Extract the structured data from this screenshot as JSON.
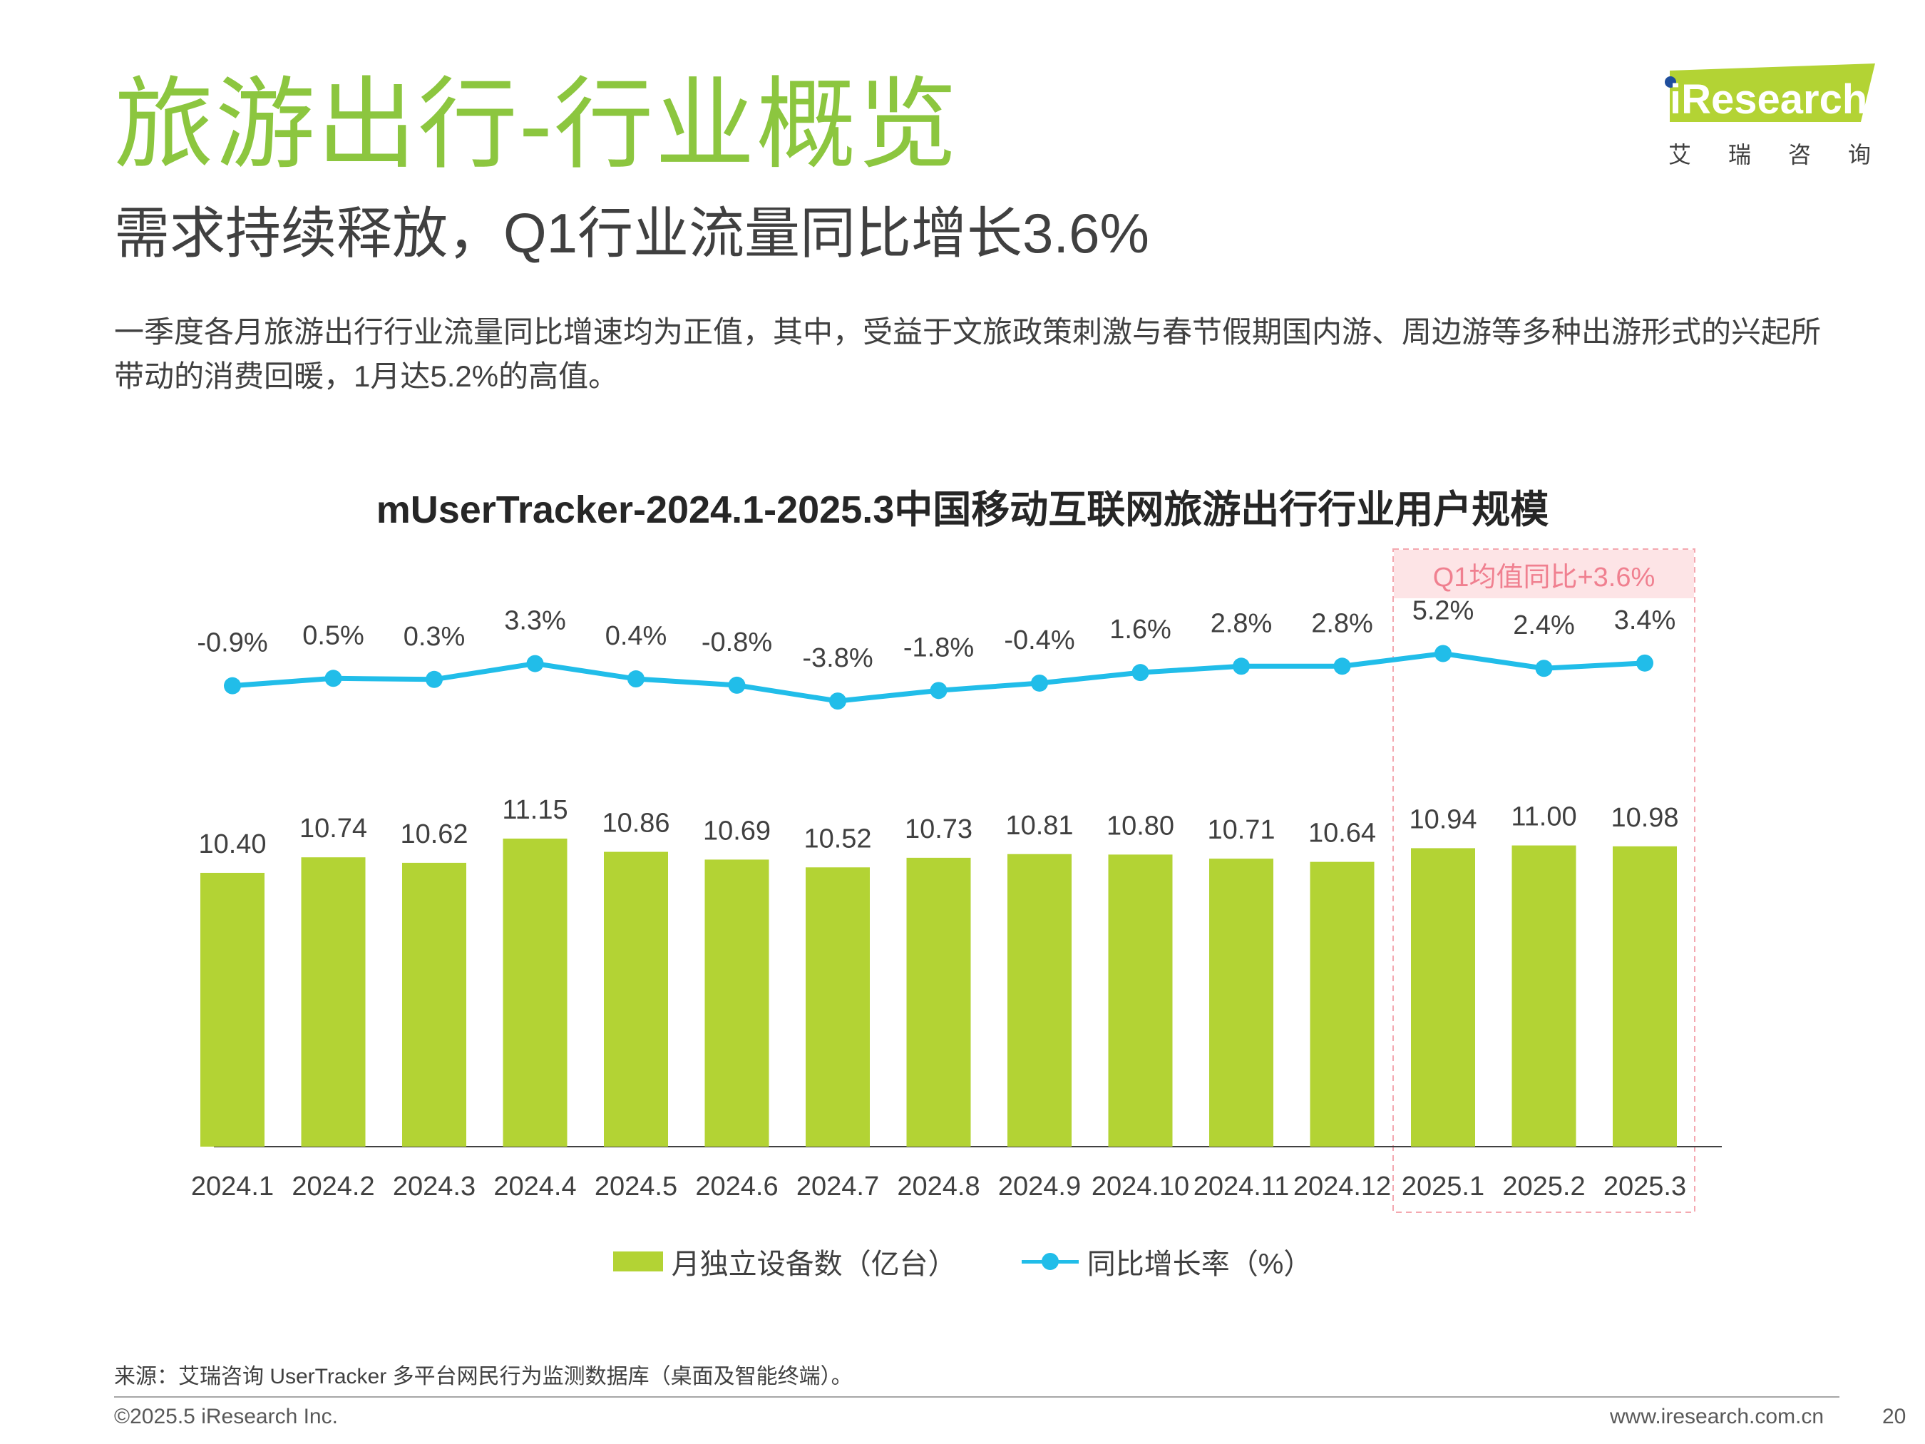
{
  "header": {
    "title": "旅游出行-行业概览",
    "subtitle": "需求持续释放，Q1行业流量同比增长3.6%",
    "description": "一季度各月旅游出行行业流量同比增速均为正值，其中，受益于文旅政策刺激与春节假期国内游、周边游等多种出游形式的兴起所带动的消费回暖，1月达5.2%的高值。"
  },
  "logo": {
    "word": "iResearch",
    "sub": "艾瑞咨询"
  },
  "colors": {
    "title_green": "#8cc63f",
    "bar": "#b3d334",
    "line": "#21bde9",
    "highlight": "#f4a8b0",
    "highlight_text": "#f08090"
  },
  "chart_data": {
    "type": "bar",
    "title": "mUserTracker-2024.1-2025.3中国移动互联网旅游出行行业用户规模",
    "categories": [
      "2024.1",
      "2024.2",
      "2024.3",
      "2024.4",
      "2024.5",
      "2024.6",
      "2024.7",
      "2024.8",
      "2024.9",
      "2024.10",
      "2024.11",
      "2024.12",
      "2025.1",
      "2025.2",
      "2025.3"
    ],
    "series": [
      {
        "name": "月独立设备数（亿台）",
        "type": "bar",
        "values": [
          10.4,
          10.74,
          10.62,
          11.15,
          10.86,
          10.69,
          10.52,
          10.73,
          10.81,
          10.8,
          10.71,
          10.64,
          10.94,
          11.0,
          10.98
        ],
        "labels": [
          "10.40",
          "10.74",
          "10.62",
          "11.15",
          "10.86",
          "10.69",
          "10.52",
          "10.73",
          "10.81",
          "10.80",
          "10.71",
          "10.64",
          "10.94",
          "11.00",
          "10.98"
        ]
      },
      {
        "name": "同比增长率（%）",
        "type": "line",
        "values": [
          -0.9,
          0.5,
          0.3,
          3.3,
          0.4,
          -0.8,
          -3.8,
          -1.8,
          -0.4,
          1.6,
          2.8,
          2.8,
          5.2,
          2.4,
          3.4
        ],
        "labels": [
          "-0.9%",
          "0.5%",
          "0.3%",
          "3.3%",
          "0.4%",
          "-0.8%",
          "-3.8%",
          "-1.8%",
          "-0.4%",
          "1.6%",
          "2.8%",
          "2.8%",
          "5.2%",
          "2.4%",
          "3.4%"
        ]
      }
    ],
    "highlight": {
      "label": "Q1均值同比+3.6%",
      "categories": [
        "2025.1",
        "2025.2",
        "2025.3"
      ]
    },
    "legend_position": "bottom",
    "grid": false
  },
  "footer": {
    "source": "来源：艾瑞咨询 UserTracker 多平台网民行为监测数据库（桌面及智能终端）。",
    "copyright": "©2025.5 iResearch Inc.",
    "website": "www.iresearch.com.cn",
    "page": "20"
  }
}
